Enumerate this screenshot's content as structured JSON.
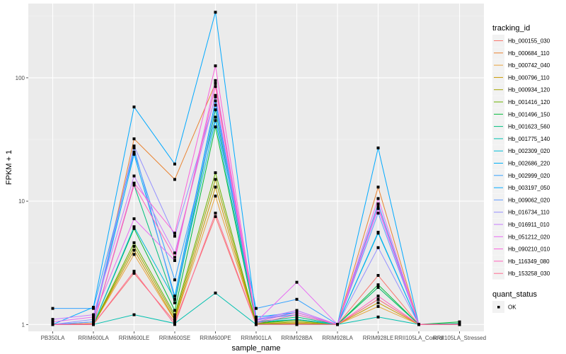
{
  "chart_data": {
    "type": "line",
    "title": "",
    "xlabel": "sample_name",
    "ylabel": "FPKM + 1",
    "yscale": "log10",
    "ylim": [
      0.88,
      400
    ],
    "yticks": [
      1,
      10,
      100
    ],
    "ytick_labels": [
      "1",
      "10",
      "100"
    ],
    "grid": true,
    "categories": [
      "PB350LA",
      "RRIM600LA",
      "RRIM600LE",
      "RRIM600SE",
      "RRIM600PE",
      "RRIM901LA",
      "RRIM928BA",
      "RRIM928LA",
      "RRIM928LE",
      "RRII105LA_Control",
      "RRII105LA_Stressed"
    ],
    "legend": {
      "title": "tracking_id",
      "position": "right",
      "shape_legend_title": "quant_status",
      "shape_legend_entries": [
        "OK"
      ]
    },
    "series": [
      {
        "name": "Hb_000155_030",
        "color": "#F8766D",
        "values": [
          1.0,
          1.0,
          2.6,
          1.05,
          7.5,
          1.0,
          1.0,
          1.0,
          2.5,
          1.0,
          1.0
        ]
      },
      {
        "name": "Hb_000684_110",
        "color": "#EA8331",
        "values": [
          1.0,
          1.02,
          32,
          15,
          90,
          1.02,
          1.02,
          1.0,
          13,
          1.0,
          1.0
        ]
      },
      {
        "name": "Hb_000742_040",
        "color": "#E7A33B",
        "values": [
          1.0,
          1.0,
          3.7,
          1.08,
          11,
          1.0,
          1.02,
          1.0,
          1.4,
          1.0,
          1.0
        ]
      },
      {
        "name": "Hb_000796_110",
        "color": "#C99800",
        "values": [
          1.0,
          1.0,
          4.0,
          1.1,
          13,
          1.0,
          1.03,
          1.0,
          1.5,
          1.0,
          1.0
        ]
      },
      {
        "name": "Hb_000934_120",
        "color": "#A3A500",
        "values": [
          1.0,
          1.0,
          4.3,
          1.15,
          15,
          1.01,
          1.05,
          1.0,
          1.6,
          1.0,
          1.0
        ]
      },
      {
        "name": "Hb_001416_120",
        "color": "#6BB100",
        "values": [
          1.0,
          1.0,
          4.6,
          1.2,
          17,
          1.02,
          1.08,
          1.0,
          2.0,
          1.0,
          1.0
        ]
      },
      {
        "name": "Hb_001496_150",
        "color": "#00BA38",
        "values": [
          1.0,
          1.0,
          6.0,
          1.3,
          40,
          1.03,
          1.1,
          1.0,
          2.1,
          1.0,
          1.05
        ]
      },
      {
        "name": "Hb_001623_560",
        "color": "#00BF7D",
        "values": [
          1.0,
          1.0,
          13.5,
          1.5,
          55,
          1.05,
          1.15,
          1.0,
          2.0,
          1.0,
          1.02
        ]
      },
      {
        "name": "Hb_001775_140",
        "color": "#00C0AF",
        "values": [
          1.0,
          1.0,
          1.2,
          1.02,
          1.8,
          1.0,
          1.0,
          1.0,
          1.15,
          1.0,
          1.0
        ]
      },
      {
        "name": "Hb_002309_020",
        "color": "#00BCD8",
        "values": [
          1.0,
          1.0,
          6.2,
          1.6,
          45,
          1.05,
          1.1,
          1.0,
          5.5,
          1.0,
          1.0
        ]
      },
      {
        "name": "Hb_002686_220",
        "color": "#00B0F6",
        "values": [
          1.0,
          1.05,
          24,
          1.7,
          65,
          1.1,
          1.2,
          1.0,
          5.6,
          1.0,
          1.0
        ]
      },
      {
        "name": "Hb_002999_020",
        "color": "#35A2FF",
        "values": [
          1.35,
          1.35,
          25,
          2.3,
          48,
          1.35,
          1.6,
          1.0,
          9.5,
          1.0,
          1.0
        ]
      },
      {
        "name": "Hb_003197_050",
        "color": "#00A9FF",
        "values": [
          1.0,
          1.38,
          58,
          20,
          340,
          1.15,
          1.25,
          1.0,
          27,
          1.0,
          1.0
        ]
      },
      {
        "name": "Hb_009062_020",
        "color": "#619CFF",
        "values": [
          1.0,
          1.05,
          27,
          1.6,
          60,
          1.08,
          1.25,
          1.0,
          8.0,
          1.0,
          1.0
        ]
      },
      {
        "name": "Hb_016734_110",
        "color": "#9590FF",
        "values": [
          1.0,
          1.1,
          28,
          5.2,
          70,
          1.1,
          1.3,
          1.0,
          4.2,
          1.0,
          1.0
        ]
      },
      {
        "name": "Hb_016911_010",
        "color": "#C77CFF",
        "values": [
          1.1,
          1.2,
          16,
          3.8,
          72,
          1.08,
          1.3,
          1.0,
          8.7,
          1.0,
          1.0
        ]
      },
      {
        "name": "Hb_051212_020",
        "color": "#E76BF3",
        "values": [
          1.05,
          1.15,
          7.2,
          3.3,
          95,
          1.05,
          2.2,
          1.0,
          10.5,
          1.0,
          1.0
        ]
      },
      {
        "name": "Hb_090210_010",
        "color": "#FA62DB",
        "values": [
          1.0,
          1.0,
          14,
          5.5,
          125,
          1.05,
          1.25,
          1.0,
          9.0,
          1.0,
          1.0
        ]
      },
      {
        "name": "Hb_116349_080",
        "color": "#FF62BC",
        "values": [
          1.0,
          1.0,
          13.5,
          3.5,
          85,
          1.02,
          1.2,
          1.0,
          1.7,
          1.0,
          1.0
        ]
      },
      {
        "name": "Hb_153258_030",
        "color": "#FF6C90",
        "values": [
          1.0,
          1.0,
          2.7,
          1.0,
          8.0,
          1.0,
          1.0,
          1.0,
          1.6,
          1.0,
          1.0
        ]
      }
    ]
  }
}
